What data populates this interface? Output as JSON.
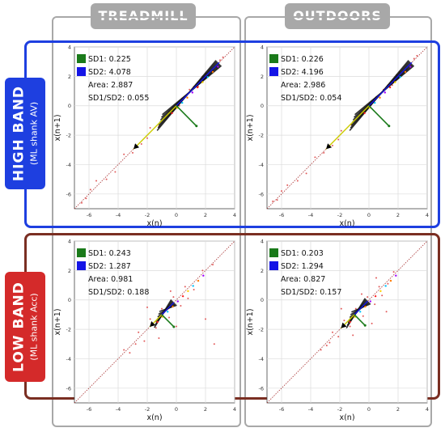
{
  "column_headers": [
    "TREADMILL",
    "OUTDOORS"
  ],
  "row_labels": [
    {
      "title": "HIGH BAND",
      "subtitle": "(ML shank AV)",
      "color": "#1e3fe0"
    },
    {
      "title": "LOW BAND",
      "subtitle": "(ML shank Acc)",
      "color": "#d42a2a"
    }
  ],
  "colors": {
    "sd1": "#1a7a1a",
    "sd2": "#1414e6",
    "identity_line": "#a83232",
    "column_frame": "#a8a8a8",
    "low_band_frame": "#7a2e22"
  },
  "legend_labels": {
    "sd1": "SD1:",
    "sd2": "SD2:",
    "area": "Area:",
    "ratio": "SD1/SD2:"
  },
  "chart_data": [
    {
      "type": "scatter",
      "panel": "high-band-treadmill",
      "xlabel": "x(n)",
      "ylabel": "x(n+1)",
      "xlim": [
        -7,
        4
      ],
      "ylim": [
        -7,
        4
      ],
      "xticks": [
        -6,
        -4,
        -2,
        0,
        2,
        4
      ],
      "yticks": [
        -6,
        -4,
        -2,
        0,
        2,
        4
      ],
      "center": [
        0.0,
        0.0
      ],
      "sd1": "0.225",
      "sd2": "4.078",
      "area": "2.887",
      "ratio": "0.055",
      "sd1_len": 1.5,
      "sd2_len": 3.2,
      "spread": 0.2,
      "points": [
        [
          -6.2,
          -6.3
        ],
        [
          -5.5,
          -5.1
        ],
        [
          -4.8,
          -5.0
        ],
        [
          -3.6,
          -3.3
        ],
        [
          -3.0,
          -3.2
        ],
        [
          -2.4,
          -2.6
        ],
        [
          -1.8,
          -1.5
        ],
        [
          -1.2,
          -1.4
        ],
        [
          -0.5,
          -0.4
        ],
        [
          0.4,
          0.5
        ],
        [
          0.9,
          1.1
        ],
        [
          1.5,
          1.3
        ],
        [
          2.0,
          2.2
        ],
        [
          2.5,
          2.4
        ],
        [
          3.0,
          3.1
        ],
        [
          -5.9,
          -5.7
        ],
        [
          -4.2,
          -4.5
        ],
        [
          1.8,
          2.0
        ],
        [
          2.8,
          2.6
        ],
        [
          3.2,
          3.3
        ],
        [
          -6.5,
          -6.6
        ],
        [
          -2.0,
          -2.2
        ],
        [
          0.2,
          0.0
        ],
        [
          1.2,
          1.3
        ]
      ]
    },
    {
      "type": "scatter",
      "panel": "high-band-outdoors",
      "xlabel": "x(n)",
      "ylabel": "x(n+1)",
      "xlim": [
        -7,
        4
      ],
      "ylim": [
        -7,
        4
      ],
      "xticks": [
        -6,
        -4,
        -2,
        0,
        2,
        4
      ],
      "yticks": [
        -6,
        -4,
        -2,
        0,
        2,
        4
      ],
      "center": [
        0.0,
        0.0
      ],
      "sd1": "0.226",
      "sd2": "4.196",
      "area": "2.986",
      "ratio": "0.054",
      "sd1_len": 1.5,
      "sd2_len": 3.2,
      "spread": 0.2,
      "points": [
        [
          -6.3,
          -6.4
        ],
        [
          -5.6,
          -5.4
        ],
        [
          -4.9,
          -5.1
        ],
        [
          -3.7,
          -3.5
        ],
        [
          -3.1,
          -3.2
        ],
        [
          -2.5,
          -2.7
        ],
        [
          -1.9,
          -1.7
        ],
        [
          -1.2,
          -1.3
        ],
        [
          -0.6,
          -0.5
        ],
        [
          0.5,
          0.6
        ],
        [
          1.0,
          1.1
        ],
        [
          1.6,
          1.4
        ],
        [
          2.1,
          2.3
        ],
        [
          2.6,
          2.5
        ],
        [
          3.1,
          3.2
        ],
        [
          -6.0,
          -5.8
        ],
        [
          -4.3,
          -4.6
        ],
        [
          1.9,
          2.1
        ],
        [
          2.9,
          2.7
        ],
        [
          3.3,
          3.4
        ],
        [
          -6.6,
          -6.5
        ],
        [
          -2.1,
          -2.3
        ],
        [
          0.1,
          0.0
        ],
        [
          1.3,
          1.4
        ]
      ]
    },
    {
      "type": "scatter",
      "panel": "low-band-treadmill",
      "xlabel": "x(n)",
      "ylabel": "x(n+1)",
      "xlim": [
        -7,
        4
      ],
      "ylim": [
        -7,
        4
      ],
      "xticks": [
        -6,
        -4,
        -2,
        0,
        2,
        4
      ],
      "yticks": [
        -6,
        -4,
        -2,
        0,
        2,
        4
      ],
      "center": [
        -1.0,
        -1.0
      ],
      "sd1": "0.243",
      "sd2": "1.287",
      "area": "0.981",
      "ratio": "0.188",
      "sd1_len": 0.9,
      "sd2_len": 0.9,
      "spread": 0.5,
      "points": [
        [
          -3.6,
          -3.4
        ],
        [
          -3.2,
          -3.6
        ],
        [
          -2.6,
          -2.2
        ],
        [
          -2.2,
          -2.8
        ],
        [
          -1.8,
          -1.3
        ],
        [
          -1.4,
          -1.9
        ],
        [
          -1.0,
          -0.6
        ],
        [
          -0.5,
          -1.2
        ],
        [
          -0.2,
          0.2
        ],
        [
          0.3,
          -0.4
        ],
        [
          0.6,
          0.9
        ],
        [
          1.2,
          0.7
        ],
        [
          1.8,
          2.0
        ],
        [
          2.5,
          2.4
        ],
        [
          -2.8,
          -3.0
        ],
        [
          -1.2,
          -2.6
        ],
        [
          0.0,
          -1.8
        ],
        [
          2.0,
          -1.3
        ],
        [
          -2.0,
          -0.5
        ],
        [
          2.6,
          -3.0
        ],
        [
          -0.4,
          0.6
        ],
        [
          0.8,
          0.1
        ]
      ]
    },
    {
      "type": "scatter",
      "panel": "low-band-outdoors",
      "xlabel": "x(n)",
      "ylabel": "x(n+1)",
      "xlim": [
        -7,
        4
      ],
      "ylim": [
        -7,
        4
      ],
      "xticks": [
        -6,
        -4,
        -2,
        0,
        2,
        4
      ],
      "yticks": [
        -6,
        -4,
        -2,
        0,
        2,
        4
      ],
      "center": [
        -1.0,
        -1.0
      ],
      "sd1": "0.203",
      "sd2": "1.294",
      "area": "0.827",
      "ratio": "0.157",
      "sd1_len": 0.8,
      "sd2_len": 1.0,
      "spread": 0.5,
      "points": [
        [
          -3.3,
          -3.4
        ],
        [
          -2.9,
          -3.1
        ],
        [
          -2.5,
          -2.2
        ],
        [
          -2.1,
          -2.5
        ],
        [
          -1.7,
          -1.4
        ],
        [
          -1.3,
          -1.8
        ],
        [
          -0.9,
          -0.6
        ],
        [
          -0.4,
          -1.1
        ],
        [
          -0.1,
          0.2
        ],
        [
          0.4,
          -0.3
        ],
        [
          0.7,
          0.9
        ],
        [
          1.3,
          1.1
        ],
        [
          1.7,
          1.9
        ],
        [
          -2.7,
          -2.9
        ],
        [
          -1.1,
          -2.4
        ],
        [
          0.2,
          -1.6
        ],
        [
          1.2,
          -0.8
        ],
        [
          -1.9,
          -0.6
        ],
        [
          -0.5,
          0.4
        ],
        [
          0.9,
          0.3
        ],
        [
          0.5,
          1.5
        ]
      ]
    }
  ]
}
